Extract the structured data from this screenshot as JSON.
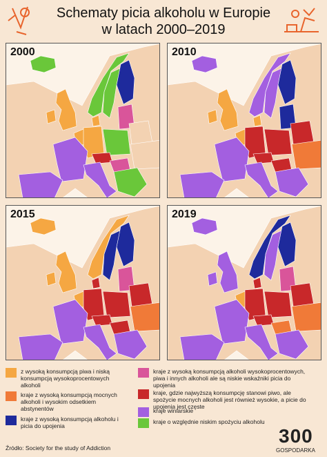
{
  "header": {
    "title": "Schematy picia alkoholu w Europie",
    "subtitle": "w latach 2000–2019"
  },
  "maps": [
    {
      "year": "2000"
    },
    {
      "year": "2010"
    },
    {
      "year": "2015"
    },
    {
      "year": "2019"
    }
  ],
  "legend": [
    {
      "label": "z wysoką konsumpcją piwa i niską konsumpcją wysokoprocentowych alkoholi",
      "color": "#f5a742"
    },
    {
      "label": "kraje z wysoką konsumpcją mocnych alkoholi i wysokim odsetkiem abstynentów",
      "color": "#f07a38"
    },
    {
      "label": "kraje z wysoką konsumpcją alkoholu i picia do upojenia",
      "color": "#1e2a9c"
    },
    {
      "label": "kraje z wysoką konsumpcją alkoholi wysokoprocentowych, piwa i innych alkoholi ale są niskie wskaźniki picia do upojenia",
      "color": "#d9559a"
    },
    {
      "label": "kraje, gdzie najwyższą konsumpcję stanowi piwo, ale spożycie mocnych alkoholi jest również wysokie, a picie do upojenia jest częste",
      "color": "#c8282a"
    },
    {
      "label": "kraje winiarskie",
      "color": "#a35fe0"
    },
    {
      "label": "kraje o względnie niskim spożyciu alkoholu",
      "color": "#6ac73a"
    }
  ],
  "source": "Źródło: Society for the study of Addiction",
  "logo": {
    "number": "300",
    "name": "GOSPODARKA"
  }
}
